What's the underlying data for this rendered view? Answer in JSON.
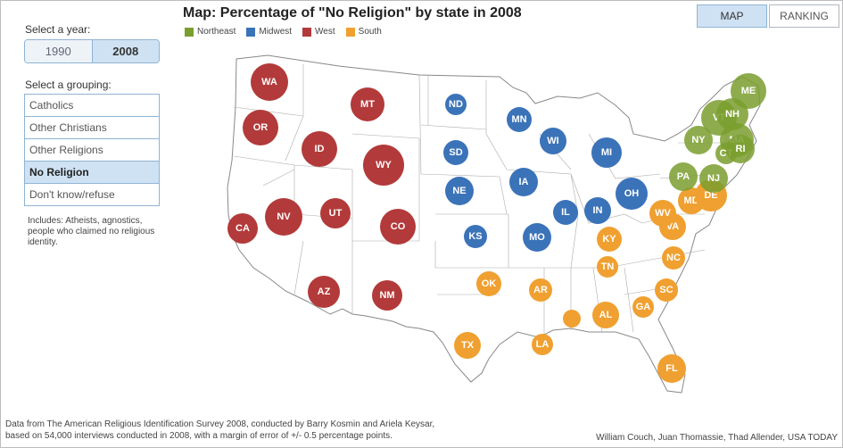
{
  "sidebar": {
    "year_prompt": "Select a year:",
    "years": [
      "1990",
      "2008"
    ],
    "selected_year": "2008",
    "grouping_prompt": "Select a grouping:",
    "groupings": [
      "Catholics",
      "Other Christians",
      "Other Religions",
      "No Religion",
      "Don't know/refuse"
    ],
    "selected_grouping": "No Religion",
    "note": "Includes: Atheists, agnostics, people who claimed no religious identity."
  },
  "header": {
    "title": "Map: Percentage of \"No Religion\" by state in 2008",
    "map_button": "MAP",
    "ranking_button": "RANKING",
    "active_view": "MAP"
  },
  "legend": [
    {
      "region": "Northeast",
      "color": "#7a9e2e"
    },
    {
      "region": "Midwest",
      "color": "#3b73b9"
    },
    {
      "region": "West",
      "color": "#b33a3a"
    },
    {
      "region": "South",
      "color": "#f0a030"
    }
  ],
  "states": [
    {
      "abbr": "WA",
      "region": "West"
    },
    {
      "abbr": "OR",
      "region": "West"
    },
    {
      "abbr": "CA",
      "region": "West"
    },
    {
      "abbr": "ID",
      "region": "West"
    },
    {
      "abbr": "NV",
      "region": "West"
    },
    {
      "abbr": "MT",
      "region": "West"
    },
    {
      "abbr": "WY",
      "region": "West"
    },
    {
      "abbr": "UT",
      "region": "West"
    },
    {
      "abbr": "CO",
      "region": "West"
    },
    {
      "abbr": "AZ",
      "region": "West"
    },
    {
      "abbr": "NM",
      "region": "West"
    },
    {
      "abbr": "ND",
      "region": "Midwest"
    },
    {
      "abbr": "SD",
      "region": "Midwest"
    },
    {
      "abbr": "NE",
      "region": "Midwest"
    },
    {
      "abbr": "KS",
      "region": "Midwest"
    },
    {
      "abbr": "MN",
      "region": "Midwest"
    },
    {
      "abbr": "IA",
      "region": "Midwest"
    },
    {
      "abbr": "MO",
      "region": "Midwest"
    },
    {
      "abbr": "WI",
      "region": "Midwest"
    },
    {
      "abbr": "IL",
      "region": "Midwest"
    },
    {
      "abbr": "MI",
      "region": "Midwest"
    },
    {
      "abbr": "IN",
      "region": "Midwest"
    },
    {
      "abbr": "OH",
      "region": "Midwest"
    },
    {
      "abbr": "OK",
      "region": "South"
    },
    {
      "abbr": "TX",
      "region": "South"
    },
    {
      "abbr": "AR",
      "region": "South"
    },
    {
      "abbr": "LA",
      "region": "South"
    },
    {
      "abbr": "",
      "region": "South"
    },
    {
      "abbr": "AL",
      "region": "South"
    },
    {
      "abbr": "TN",
      "region": "South"
    },
    {
      "abbr": "KY",
      "region": "South"
    },
    {
      "abbr": "GA",
      "region": "South"
    },
    {
      "abbr": "FL",
      "region": "South"
    },
    {
      "abbr": "SC",
      "region": "South"
    },
    {
      "abbr": "NC",
      "region": "South"
    },
    {
      "abbr": "VA",
      "region": "South"
    },
    {
      "abbr": "WV",
      "region": "South"
    },
    {
      "abbr": "MD",
      "region": "South"
    },
    {
      "abbr": "DE",
      "region": "South"
    },
    {
      "abbr": "PA",
      "region": "Northeast"
    },
    {
      "abbr": "NJ",
      "region": "Northeast"
    },
    {
      "abbr": "NY",
      "region": "Northeast"
    },
    {
      "abbr": "VT",
      "region": "Northeast"
    },
    {
      "abbr": "NH",
      "region": "Northeast"
    },
    {
      "abbr": "ME",
      "region": "Northeast"
    },
    {
      "abbr": "MA",
      "region": "Northeast"
    },
    {
      "abbr": "CT",
      "region": "Northeast"
    },
    {
      "abbr": "RI",
      "region": "Northeast"
    }
  ],
  "footer": {
    "source": "Data from The American Religious Identification Survey 2008, conducted by Barry Kosmin and Ariela Keysar,",
    "source2": "based on 54,000 interviews conducted in 2008, with a margin of error of +/- 0.5 percentage points.",
    "credit": "William Couch, Juan Thomassie, Thad Allender, USA TODAY"
  }
}
